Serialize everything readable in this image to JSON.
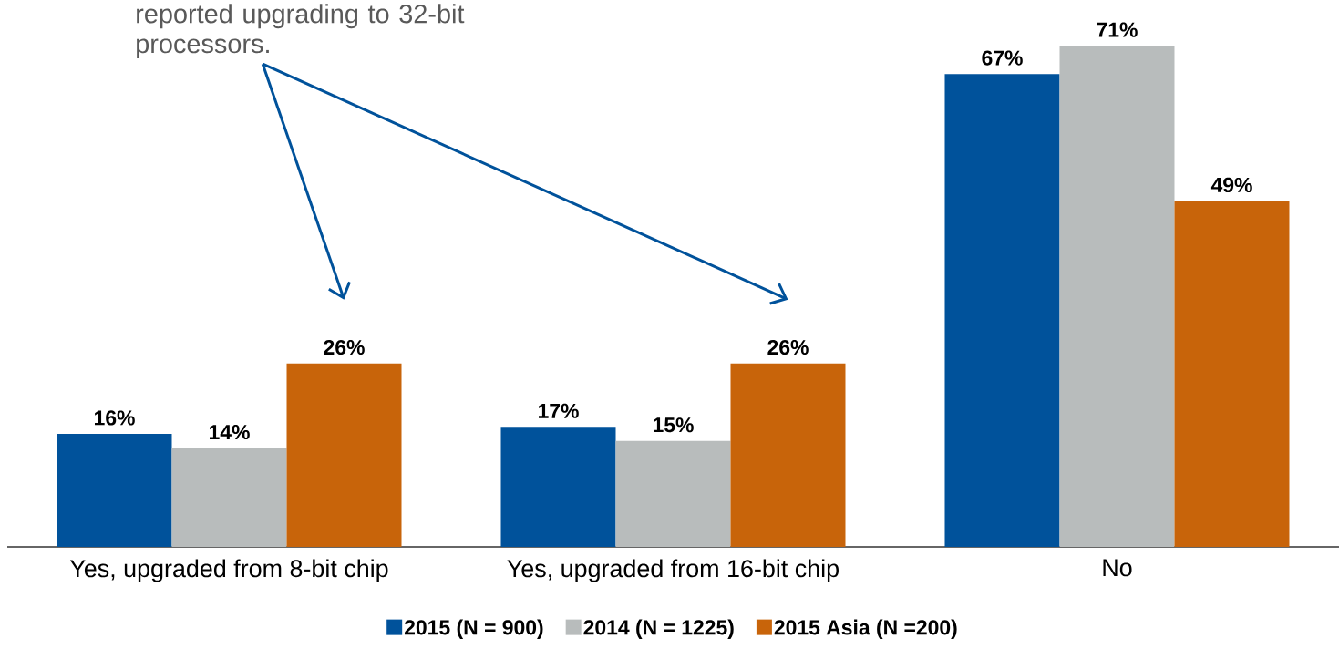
{
  "chart_data": {
    "type": "bar",
    "categories": [
      "Yes, upgraded from 8-bit chip",
      "Yes, upgraded from 16-bit chip",
      "No"
    ],
    "series": [
      {
        "name": "2015 (N = 900)",
        "color": "#00529b",
        "values": [
          16,
          17,
          67
        ],
        "value_labels": [
          "16%",
          "17%",
          "67%"
        ]
      },
      {
        "name": "2014 (N = 1225)",
        "color": "#b8bcbc",
        "values": [
          14,
          15,
          71
        ],
        "value_labels": [
          "14%",
          "15%",
          "71%"
        ]
      },
      {
        "name": "2015 Asia (N =200)",
        "color": "#c8640a",
        "values": [
          26,
          26,
          49
        ],
        "value_labels": [
          "26%",
          "26%",
          "49%"
        ]
      }
    ],
    "legend": "bottom",
    "grid": false,
    "annotations": [
      "reported upgrading to 32-bit processors."
    ]
  }
}
